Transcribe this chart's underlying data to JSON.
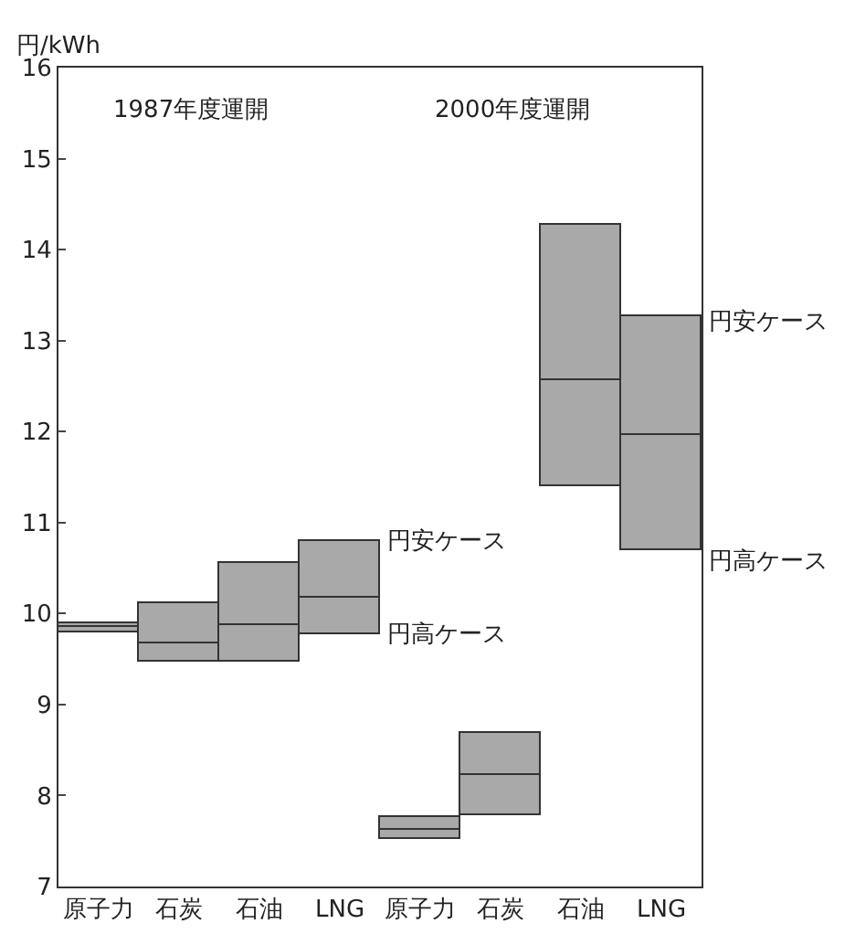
{
  "chart_data": {
    "type": "bar",
    "ylabel": "円/kWh",
    "categories": [
      "原子力",
      "石炭",
      "石油",
      "LNG",
      "原子力",
      "石炭",
      "石油",
      "LNG"
    ],
    "series": [
      {
        "color": "#a9a9a9",
        "base": [
          9.8,
          9.47,
          9.47,
          9.77,
          7.52,
          7.79,
          11.4,
          10.7
        ],
        "values": [
          0.05,
          0.2,
          0.4,
          0.4,
          0.11,
          0.44,
          1.17,
          1.27
        ]
      },
      {
        "color": "#a9a9a9",
        "base": [
          9.85,
          9.67,
          9.87,
          10.17,
          7.63,
          8.23,
          12.57,
          11.97
        ],
        "values": [
          0.05,
          0.44,
          0.68,
          0.63,
          0.13,
          0.45,
          1.7,
          1.3
        ]
      }
    ],
    "ylim": [
      7,
      16
    ],
    "yticks": [
      7,
      8,
      9,
      10,
      11,
      12,
      13,
      14,
      15,
      16
    ],
    "grid": false,
    "annotations": [
      "1987年度運開",
      "2000年度運開",
      {
        "text": "円安ケース",
        "x": "LNG",
        "y": 10.8
      },
      {
        "text": "円高ケース",
        "x": "LNG",
        "y": 9.77
      },
      "円安ケース",
      "円高ケース"
    ]
  }
}
